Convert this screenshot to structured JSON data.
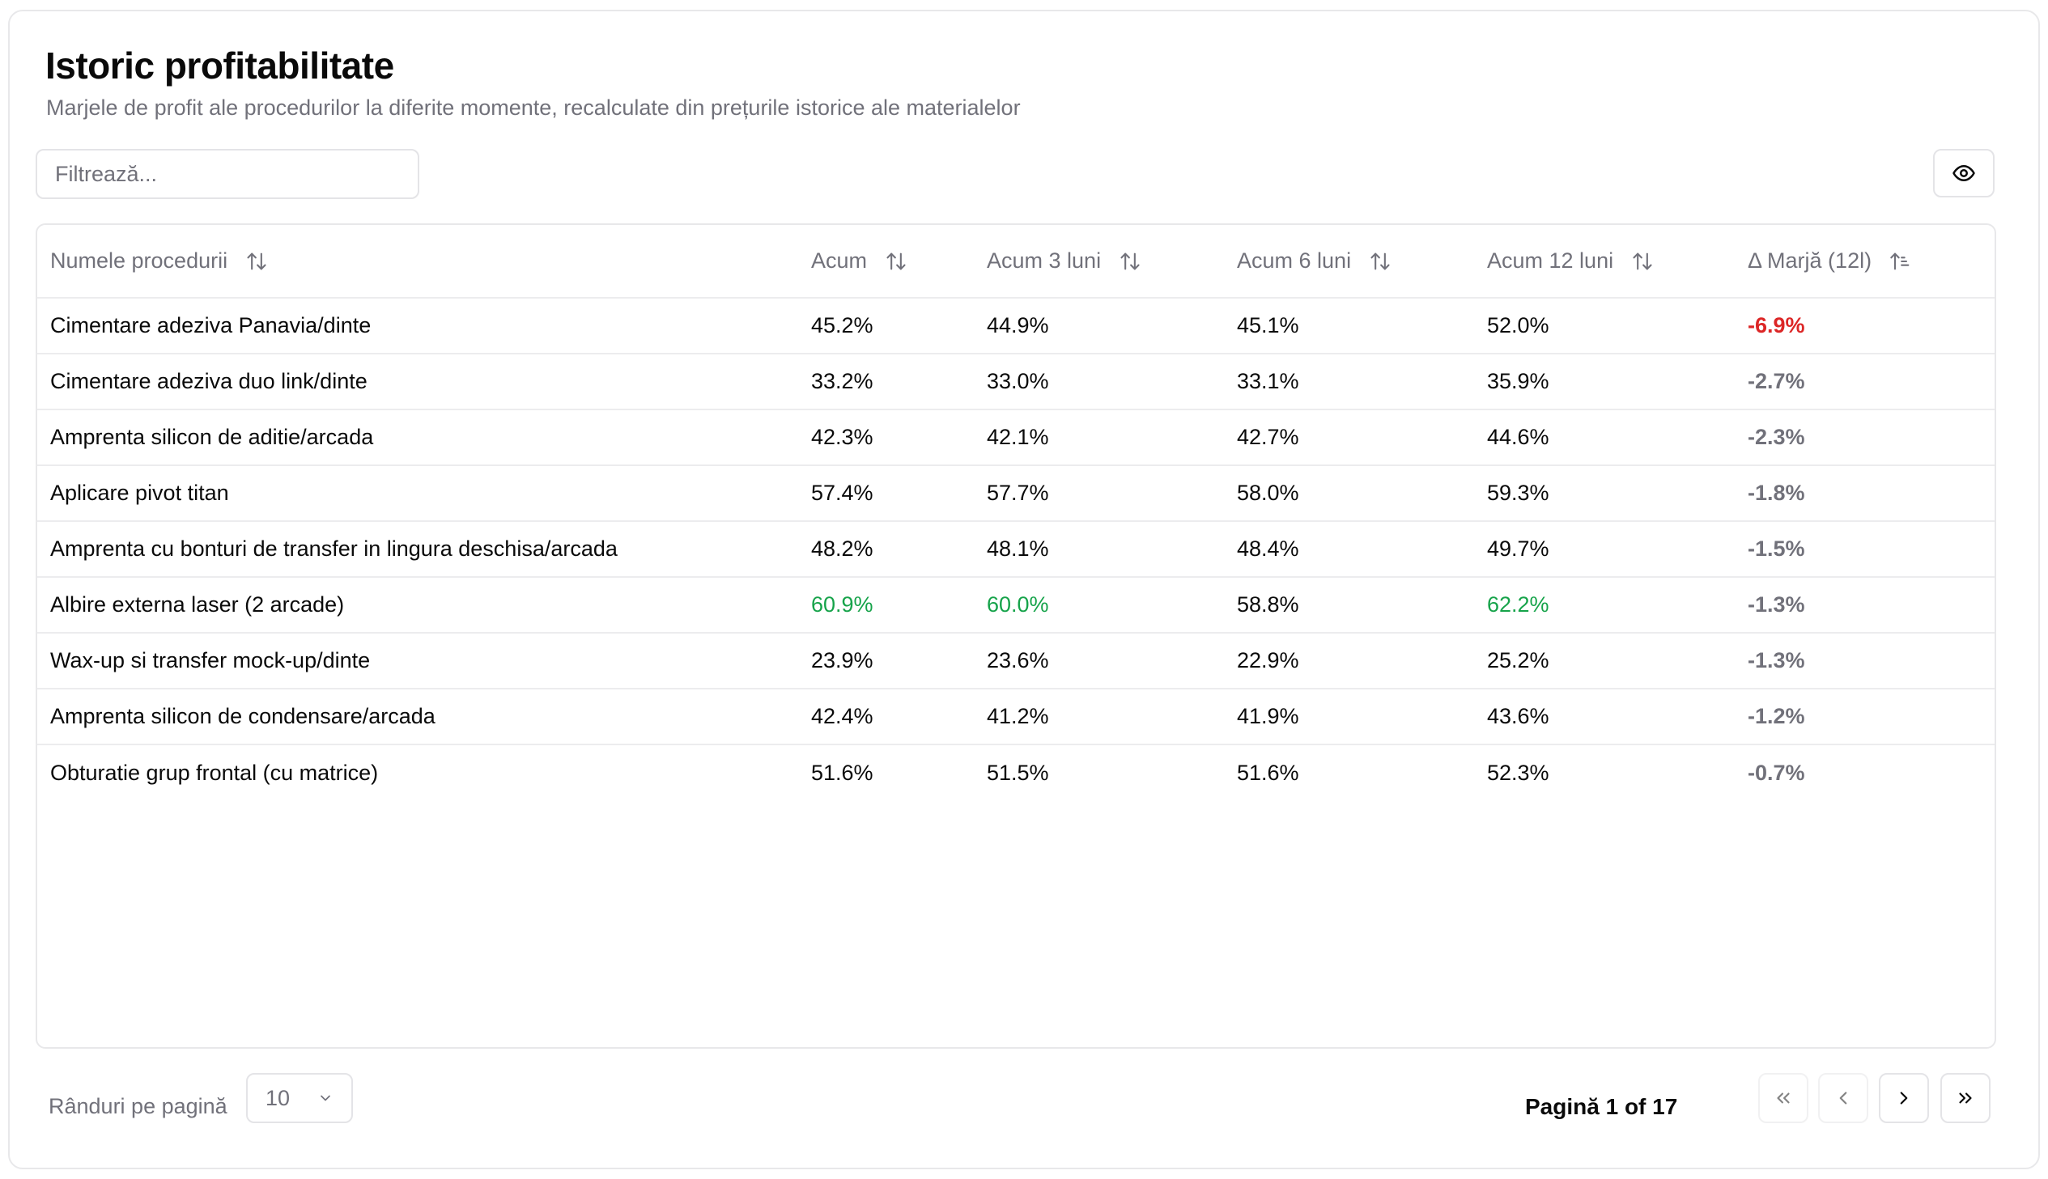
{
  "header": {
    "title": "Istoric profitabilitate",
    "subtitle": "Marjele de profit ale procedurilor la diferite momente, recalculate din prețurile istorice ale materialelor"
  },
  "toolbar": {
    "filter_placeholder": "Filtrează...",
    "filter_value": "",
    "columns_icon": "eye-icon"
  },
  "table": {
    "columns": [
      {
        "label": "Numele procedurii",
        "sort_icon": "sort-icon"
      },
      {
        "label": "Acum",
        "sort_icon": "sort-icon"
      },
      {
        "label": "Acum 3 luni",
        "sort_icon": "sort-icon"
      },
      {
        "label": "Acum 6 luni",
        "sort_icon": "sort-icon"
      },
      {
        "label": "Acum 12 luni",
        "sort_icon": "sort-icon"
      },
      {
        "label": "Δ Marjă (12l)",
        "sort_icon": "sort-ascending-icon"
      }
    ],
    "rows": [
      {
        "name": "Cimentare adeziva Panavia/dinte",
        "now": "45.2%",
        "m3": "44.9%",
        "m6": "45.1%",
        "m12": "52.0%",
        "delta": "-6.9%"
      },
      {
        "name": "Cimentare adeziva duo link/dinte",
        "now": "33.2%",
        "m3": "33.0%",
        "m6": "33.1%",
        "m12": "35.9%",
        "delta": "-2.7%"
      },
      {
        "name": "Amprenta silicon de aditie/arcada",
        "now": "42.3%",
        "m3": "42.1%",
        "m6": "42.7%",
        "m12": "44.6%",
        "delta": "-2.3%"
      },
      {
        "name": "Aplicare pivot titan",
        "now": "57.4%",
        "m3": "57.7%",
        "m6": "58.0%",
        "m12": "59.3%",
        "delta": "-1.8%"
      },
      {
        "name": "Amprenta cu bonturi de transfer in lingura deschisa/arcada",
        "now": "48.2%",
        "m3": "48.1%",
        "m6": "48.4%",
        "m12": "49.7%",
        "delta": "-1.5%"
      },
      {
        "name": "Albire externa laser (2 arcade)",
        "now": "60.9%",
        "m3": "60.0%",
        "m6": "58.8%",
        "m12": "62.2%",
        "delta": "-1.3%"
      },
      {
        "name": "Wax-up si transfer mock-up/dinte",
        "now": "23.9%",
        "m3": "23.6%",
        "m6": "22.9%",
        "m12": "25.2%",
        "delta": "-1.3%"
      },
      {
        "name": "Amprenta silicon de condensare/arcada",
        "now": "42.4%",
        "m3": "41.2%",
        "m6": "41.9%",
        "m12": "43.6%",
        "delta": "-1.2%"
      },
      {
        "name": "Obturatie grup frontal (cu matrice)",
        "now": "51.6%",
        "m3": "51.5%",
        "m6": "51.6%",
        "m12": "52.3%",
        "delta": "-0.7%"
      }
    ]
  },
  "colors": {
    "positive": "#16a34a",
    "negative": "#dc2626",
    "muted": "#71717a"
  },
  "footer": {
    "rows_per_page_label": "Rânduri pe pagină",
    "rows_per_page_value": "10",
    "page_info": "Pagină 1 of 17",
    "first_icon": "chevrons-left-icon",
    "prev_icon": "chevron-left-icon",
    "next_icon": "chevron-right-icon",
    "last_icon": "chevrons-right-icon"
  }
}
